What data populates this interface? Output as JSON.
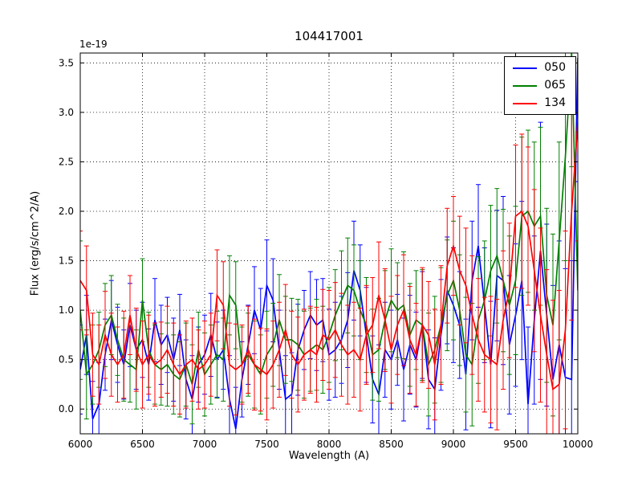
{
  "chart_data": {
    "type": "line",
    "title": "104417001",
    "xlabel": "Wavelength (A)",
    "ylabel": "Flux (erg/s/cm^2/A)",
    "y_scale_label": "1e-19",
    "xlim": [
      6000,
      10000
    ],
    "ylim": [
      -0.25,
      3.6
    ],
    "xticks": [
      6000,
      6500,
      7000,
      7500,
      8000,
      8500,
      9000,
      9500,
      10000
    ],
    "yticks": [
      0.0,
      0.5,
      1.0,
      1.5,
      2.0,
      2.5,
      3.0,
      3.5
    ],
    "grid": true,
    "grid_style": "dotted",
    "legend_position": "upper right",
    "x": [
      6000,
      6050,
      6100,
      6150,
      6200,
      6250,
      6300,
      6350,
      6400,
      6450,
      6500,
      6550,
      6600,
      6650,
      6700,
      6750,
      6800,
      6850,
      6900,
      6950,
      7000,
      7050,
      7100,
      7150,
      7200,
      7250,
      7300,
      7350,
      7400,
      7450,
      7500,
      7550,
      7600,
      7650,
      7700,
      7750,
      7800,
      7850,
      7900,
      7950,
      8000,
      8050,
      8100,
      8150,
      8200,
      8250,
      8300,
      8350,
      8400,
      8450,
      8500,
      8550,
      8600,
      8650,
      8700,
      8750,
      8800,
      8850,
      8900,
      8950,
      9000,
      9050,
      9100,
      9150,
      9200,
      9250,
      9300,
      9350,
      9400,
      9450,
      9500,
      9550,
      9600,
      9650,
      9700,
      9750,
      9800,
      9850,
      9900,
      9950,
      10000
    ],
    "series": [
      {
        "name": "050",
        "color": "#0000ff",
        "values": [
          0.4,
          0.75,
          -0.1,
          0.05,
          0.55,
          0.9,
          0.65,
          0.45,
          0.85,
          0.6,
          0.7,
          0.45,
          0.9,
          0.65,
          0.75,
          0.5,
          0.8,
          0.3,
          0.1,
          0.45,
          0.55,
          0.75,
          0.5,
          0.6,
          0.1,
          -0.2,
          0.3,
          0.65,
          1.0,
          0.8,
          1.25,
          1.1,
          0.6,
          0.1,
          0.15,
          0.6,
          0.8,
          0.95,
          0.85,
          0.9,
          0.55,
          0.6,
          0.7,
          0.9,
          1.4,
          1.2,
          0.75,
          0.3,
          0.15,
          0.6,
          0.5,
          0.7,
          0.4,
          0.65,
          0.5,
          0.85,
          0.3,
          0.2,
          0.75,
          1.2,
          1.05,
          0.85,
          0.35,
          1.3,
          1.65,
          1.05,
          0.45,
          1.35,
          1.3,
          0.65,
          0.95,
          1.3,
          0.05,
          0.9,
          1.6,
          0.95,
          0.3,
          0.65,
          0.32,
          0.3,
          3.55
        ],
        "errors": [
          0.45,
          0.4,
          0.38,
          0.42,
          0.36,
          0.4,
          0.38,
          0.35,
          0.42,
          0.4,
          0.38,
          0.36,
          0.42,
          0.4,
          0.38,
          0.42,
          0.36,
          0.4,
          0.44,
          0.38,
          0.4,
          0.42,
          0.38,
          0.4,
          0.44,
          0.42,
          0.38,
          0.4,
          0.44,
          0.42,
          0.46,
          0.42,
          0.4,
          0.44,
          0.42,
          0.46,
          0.4,
          0.44,
          0.46,
          0.42,
          0.46,
          0.48,
          0.44,
          0.48,
          0.5,
          0.46,
          0.48,
          0.44,
          0.5,
          0.48,
          0.5,
          0.46,
          0.52,
          0.5,
          0.48,
          0.54,
          0.5,
          0.52,
          0.56,
          0.54,
          0.58,
          0.54,
          0.56,
          0.6,
          0.62,
          0.58,
          0.64,
          0.66,
          0.85,
          0.7,
          0.72,
          0.8,
          0.78,
          0.85,
          1.3,
          0.92,
          0.95,
          1.05,
          1.1,
          1.2,
          1.25
        ]
      },
      {
        "name": "065",
        "color": "#008000",
        "values": [
          1.0,
          0.35,
          0.45,
          0.6,
          0.85,
          0.95,
          0.7,
          0.5,
          0.45,
          0.4,
          1.1,
          0.6,
          0.45,
          0.4,
          0.45,
          0.35,
          0.3,
          0.45,
          0.25,
          0.6,
          0.35,
          0.45,
          0.55,
          0.5,
          1.15,
          1.05,
          0.45,
          0.55,
          0.45,
          0.35,
          0.55,
          0.65,
          0.9,
          0.7,
          0.7,
          0.65,
          0.55,
          0.6,
          0.65,
          0.6,
          0.75,
          0.95,
          1.1,
          1.25,
          1.2,
          1.0,
          0.85,
          0.55,
          0.6,
          0.9,
          1.1,
          1.0,
          1.05,
          0.75,
          0.9,
          0.85,
          0.45,
          0.6,
          0.85,
          1.15,
          1.3,
          1.0,
          0.55,
          0.45,
          0.9,
          1.1,
          1.4,
          1.55,
          1.3,
          1.05,
          1.3,
          1.95,
          2.0,
          1.85,
          1.95,
          1.15,
          0.85,
          1.7,
          2.55,
          3.6,
          1.2
        ],
        "errors": [
          0.7,
          0.45,
          0.4,
          0.38,
          0.42,
          0.4,
          0.36,
          0.42,
          0.38,
          0.4,
          0.42,
          0.38,
          0.4,
          0.36,
          0.42,
          0.4,
          0.38,
          0.42,
          0.4,
          0.38,
          0.42,
          0.4,
          0.44,
          0.42,
          0.4,
          0.44,
          0.38,
          0.42,
          0.44,
          0.4,
          0.44,
          0.42,
          0.46,
          0.44,
          0.42,
          0.46,
          0.44,
          0.42,
          0.46,
          0.44,
          0.48,
          0.46,
          0.5,
          0.48,
          0.46,
          0.5,
          0.48,
          0.46,
          0.52,
          0.5,
          0.52,
          0.48,
          0.54,
          0.52,
          0.5,
          0.56,
          0.52,
          0.54,
          0.58,
          0.56,
          0.6,
          0.56,
          0.58,
          0.62,
          0.64,
          0.6,
          0.66,
          0.68,
          0.72,
          0.7,
          0.75,
          0.8,
          0.82,
          0.85,
          0.9,
          0.88,
          0.92,
          1.0,
          1.05,
          1.15,
          1.6
        ]
      },
      {
        "name": "134",
        "color": "#ff0000",
        "values": [
          1.3,
          1.2,
          0.55,
          0.45,
          0.75,
          0.55,
          0.45,
          0.55,
          0.95,
          0.6,
          0.45,
          0.55,
          0.45,
          0.5,
          0.6,
          0.45,
          0.35,
          0.45,
          0.5,
          0.4,
          0.45,
          0.55,
          1.15,
          1.05,
          0.45,
          0.4,
          0.45,
          0.6,
          0.45,
          0.4,
          0.35,
          0.45,
          0.6,
          0.8,
          0.55,
          0.45,
          0.55,
          0.6,
          0.55,
          0.75,
          0.7,
          0.8,
          0.65,
          0.55,
          0.6,
          0.5,
          0.75,
          0.85,
          1.15,
          0.9,
          0.6,
          0.85,
          1.0,
          0.7,
          0.55,
          0.85,
          0.75,
          0.45,
          0.85,
          1.45,
          1.65,
          1.4,
          1.25,
          0.95,
          0.7,
          0.55,
          0.5,
          0.45,
          0.9,
          1.2,
          1.95,
          2.0,
          1.85,
          1.4,
          0.95,
          0.55,
          0.2,
          0.25,
          0.8,
          2.0,
          2.9
        ],
        "errors": [
          0.5,
          0.45,
          0.42,
          0.4,
          0.44,
          0.42,
          0.38,
          0.44,
          0.4,
          0.42,
          0.44,
          0.4,
          0.42,
          0.38,
          0.44,
          0.42,
          0.4,
          0.44,
          0.42,
          0.4,
          0.44,
          0.42,
          0.46,
          0.44,
          0.42,
          0.46,
          0.4,
          0.44,
          0.46,
          0.42,
          0.46,
          0.44,
          0.48,
          0.46,
          0.44,
          0.48,
          0.46,
          0.44,
          0.48,
          0.46,
          0.5,
          0.48,
          0.52,
          0.5,
          0.48,
          0.52,
          0.5,
          0.48,
          0.54,
          0.52,
          0.54,
          0.5,
          0.56,
          0.54,
          0.52,
          0.58,
          0.54,
          0.56,
          0.6,
          0.58,
          0.5,
          0.55,
          0.58,
          0.6,
          0.62,
          0.58,
          0.64,
          0.66,
          0.7,
          0.68,
          0.72,
          0.78,
          0.8,
          0.82,
          0.88,
          0.86,
          0.9,
          0.95,
          1.0,
          1.1,
          1.2
        ]
      }
    ]
  }
}
